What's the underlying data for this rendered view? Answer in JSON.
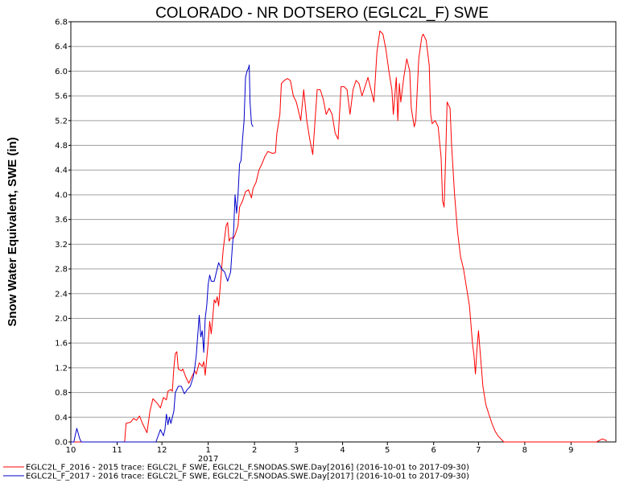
{
  "chart_data": {
    "type": "line",
    "title": "COLORADO - NR DOTSERO (EGLC2L_F) SWE",
    "ylabel": "Snow Water Equivalent, SWE (in)",
    "xlabel": "",
    "ylim": [
      0,
      6.8
    ],
    "y_ticks": [
      "0.0",
      "0.4",
      "0.8",
      "1.2",
      "1.6",
      "2.0",
      "2.4",
      "2.8",
      "3.2",
      "3.6",
      "4.0",
      "4.4",
      "4.8",
      "5.2",
      "5.6",
      "6.0",
      "6.4",
      "6.8"
    ],
    "x_ticks": [
      "10",
      "11",
      "12",
      "1",
      "2",
      "3",
      "4",
      "5",
      "6",
      "7",
      "8",
      "9"
    ],
    "x_year_label": "2017",
    "grid": true,
    "legend_position": "bottom",
    "series": [
      {
        "name": "EGLC2L_F_2016 - 2015 trace: EGLC2L_F SWE, EGLC2L_F.SNODAS.SWE.Day[2016] (2016-10-01 to 2017-09-30)",
        "color": "#ff0000",
        "points": [
          [
            0,
            0
          ],
          [
            36,
            0
          ],
          [
            37,
            0.3
          ],
          [
            40,
            0.32
          ],
          [
            42,
            0.38
          ],
          [
            44,
            0.35
          ],
          [
            46,
            0.42
          ],
          [
            48,
            0.3
          ],
          [
            50,
            0.2
          ],
          [
            51,
            0.15
          ],
          [
            53,
            0.5
          ],
          [
            55,
            0.7
          ],
          [
            58,
            0.62
          ],
          [
            60,
            0.55
          ],
          [
            62,
            0.72
          ],
          [
            64,
            0.68
          ],
          [
            65,
            0.82
          ],
          [
            67,
            0.85
          ],
          [
            68,
            0.82
          ],
          [
            69,
            1.2
          ],
          [
            70,
            1.43
          ],
          [
            71,
            1.46
          ],
          [
            72,
            1.18
          ],
          [
            74,
            1.15
          ],
          [
            75,
            1.18
          ],
          [
            77,
            1.05
          ],
          [
            79,
            0.95
          ],
          [
            81,
            1.05
          ],
          [
            83,
            1.15
          ],
          [
            84,
            1.1
          ],
          [
            86,
            1.28
          ],
          [
            88,
            1.22
          ],
          [
            89,
            1.3
          ],
          [
            90,
            1.08
          ],
          [
            92,
            1.6
          ],
          [
            93,
            1.95
          ],
          [
            94,
            1.75
          ],
          [
            95,
            2.0
          ],
          [
            96,
            2.3
          ],
          [
            97,
            2.25
          ],
          [
            98,
            2.35
          ],
          [
            99,
            2.2
          ],
          [
            100,
            2.5
          ],
          [
            101,
            2.8
          ],
          [
            102,
            3.1
          ],
          [
            103,
            3.3
          ],
          [
            104,
            3.5
          ],
          [
            105,
            3.55
          ],
          [
            106,
            3.25
          ],
          [
            107,
            3.3
          ],
          [
            109,
            3.3
          ],
          [
            110,
            3.35
          ],
          [
            112,
            3.5
          ],
          [
            113,
            3.8
          ],
          [
            115,
            3.9
          ],
          [
            117,
            4.05
          ],
          [
            119,
            4.08
          ],
          [
            121,
            3.95
          ],
          [
            122,
            4.1
          ],
          [
            124,
            4.2
          ],
          [
            126,
            4.4
          ],
          [
            128,
            4.5
          ],
          [
            130,
            4.62
          ],
          [
            132,
            4.7
          ],
          [
            135,
            4.67
          ],
          [
            137,
            4.68
          ],
          [
            138,
            5.0
          ],
          [
            140,
            5.3
          ],
          [
            141,
            5.8
          ],
          [
            143,
            5.85
          ],
          [
            145,
            5.88
          ],
          [
            147,
            5.85
          ],
          [
            149,
            5.6
          ],
          [
            151,
            5.5
          ],
          [
            153,
            5.3
          ],
          [
            154,
            5.2
          ],
          [
            156,
            5.7
          ],
          [
            158,
            5.2
          ],
          [
            160,
            4.9
          ],
          [
            162,
            4.65
          ],
          [
            163,
            5.0
          ],
          [
            165,
            5.7
          ],
          [
            167,
            5.7
          ],
          [
            169,
            5.55
          ],
          [
            171,
            5.3
          ],
          [
            173,
            5.4
          ],
          [
            175,
            5.3
          ],
          [
            177,
            5.0
          ],
          [
            179,
            4.9
          ],
          [
            181,
            5.75
          ],
          [
            183,
            5.75
          ],
          [
            185,
            5.7
          ],
          [
            187,
            5.3
          ],
          [
            189,
            5.7
          ],
          [
            191,
            5.85
          ],
          [
            193,
            5.8
          ],
          [
            195,
            5.6
          ],
          [
            197,
            5.75
          ],
          [
            199,
            5.9
          ],
          [
            201,
            5.7
          ],
          [
            203,
            5.5
          ],
          [
            205,
            6.3
          ],
          [
            207,
            6.65
          ],
          [
            209,
            6.6
          ],
          [
            211,
            6.35
          ],
          [
            213,
            6.0
          ],
          [
            215,
            5.7
          ],
          [
            216,
            5.3
          ],
          [
            218,
            5.9
          ],
          [
            219,
            5.2
          ],
          [
            220,
            5.8
          ],
          [
            221,
            5.5
          ],
          [
            223,
            5.9
          ],
          [
            225,
            6.2
          ],
          [
            227,
            6.0
          ],
          [
            228,
            5.4
          ],
          [
            230,
            5.1
          ],
          [
            231,
            5.2
          ],
          [
            233,
            6.2
          ],
          [
            235,
            6.55
          ],
          [
            236,
            6.6
          ],
          [
            238,
            6.5
          ],
          [
            240,
            6.1
          ],
          [
            241,
            5.3
          ],
          [
            242,
            5.15
          ],
          [
            244,
            5.2
          ],
          [
            246,
            5.1
          ],
          [
            248,
            4.6
          ],
          [
            249,
            3.9
          ],
          [
            250,
            3.8
          ],
          [
            251,
            4.6
          ],
          [
            252,
            5.5
          ],
          [
            254,
            5.4
          ],
          [
            255,
            4.8
          ],
          [
            257,
            4.0
          ],
          [
            259,
            3.4
          ],
          [
            261,
            3.0
          ],
          [
            263,
            2.8
          ],
          [
            265,
            2.5
          ],
          [
            267,
            2.2
          ],
          [
            269,
            1.6
          ],
          [
            270,
            1.4
          ],
          [
            271,
            1.1
          ],
          [
            272,
            1.5
          ],
          [
            273,
            1.8
          ],
          [
            274,
            1.5
          ],
          [
            276,
            0.9
          ],
          [
            278,
            0.6
          ],
          [
            280,
            0.45
          ],
          [
            282,
            0.3
          ],
          [
            284,
            0.18
          ],
          [
            286,
            0.1
          ],
          [
            288,
            0.05
          ],
          [
            290,
            0.0
          ],
          [
            352,
            0.0
          ],
          [
            356,
            0.05
          ],
          [
            359,
            0.02
          ]
        ]
      },
      {
        "name": "EGLC2L_F_2017 - 2016 trace: EGLC2L_F SWE, EGLC2L_F.SNODAS.SWE.Day[2017] (2016-10-01 to 2017-09-30)",
        "color": "#0000cc",
        "points": [
          [
            0,
            0
          ],
          [
            2,
            0
          ],
          [
            4,
            0.22
          ],
          [
            6,
            0.05
          ],
          [
            7,
            0
          ],
          [
            57,
            0
          ],
          [
            60,
            0.2
          ],
          [
            62,
            0.1
          ],
          [
            63,
            0.2
          ],
          [
            64,
            0.45
          ],
          [
            65,
            0.28
          ],
          [
            66,
            0.4
          ],
          [
            67,
            0.3
          ],
          [
            69,
            0.5
          ],
          [
            70,
            0.8
          ],
          [
            72,
            0.9
          ],
          [
            74,
            0.9
          ],
          [
            76,
            0.78
          ],
          [
            78,
            0.85
          ],
          [
            80,
            0.9
          ],
          [
            82,
            1.05
          ],
          [
            83,
            1.2
          ],
          [
            84,
            1.4
          ],
          [
            86,
            2.05
          ],
          [
            87,
            1.7
          ],
          [
            88,
            1.8
          ],
          [
            89,
            1.45
          ],
          [
            90,
            2.0
          ],
          [
            91,
            2.2
          ],
          [
            92,
            2.55
          ],
          [
            93,
            2.7
          ],
          [
            94,
            2.6
          ],
          [
            96,
            2.6
          ],
          [
            97,
            2.7
          ],
          [
            99,
            2.9
          ],
          [
            101,
            2.8
          ],
          [
            103,
            2.75
          ],
          [
            105,
            2.6
          ],
          [
            107,
            2.75
          ],
          [
            108,
            3.1
          ],
          [
            109,
            3.4
          ],
          [
            110,
            4.0
          ],
          [
            111,
            3.7
          ],
          [
            112,
            4.0
          ],
          [
            113,
            4.5
          ],
          [
            114,
            4.55
          ],
          [
            115,
            4.9
          ],
          [
            116,
            5.2
          ],
          [
            117,
            5.9
          ],
          [
            118,
            6.0
          ],
          [
            119,
            6.05
          ],
          [
            119.5,
            6.1
          ],
          [
            120,
            5.5
          ],
          [
            121,
            5.15
          ],
          [
            122,
            5.1
          ]
        ]
      }
    ]
  }
}
